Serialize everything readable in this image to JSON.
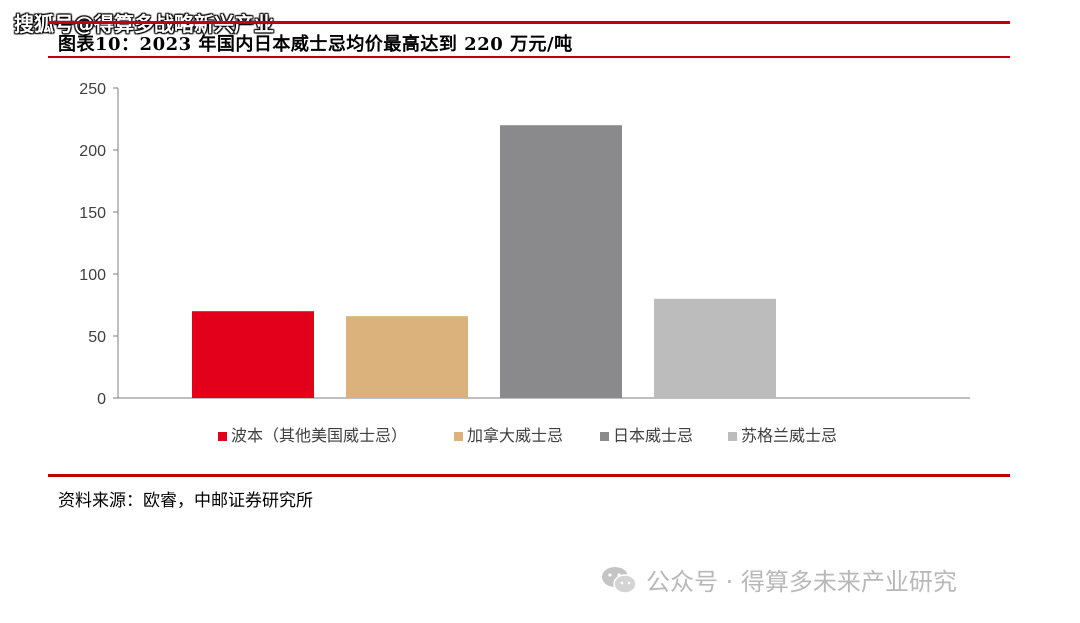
{
  "watermark_top": "搜狐号@得算多战略新兴产业",
  "title": "图表10：2023 年国内日本威士忌均价最高达到 220 万元/吨",
  "source": "资料来源：欧睿，中邮证券研究所",
  "watermark_bottom": "公众号 · 得算多未来产业研究",
  "icons": {
    "watermark": "wechat-icon"
  },
  "chart_data": {
    "type": "bar",
    "title": "图表10：2023 年国内日本威士忌均价最高达到 220 万元/吨",
    "xlabel": "",
    "ylabel": "",
    "categories": [
      "波本（其他美国威士忌）",
      "加拿大威士忌",
      "日本威士忌",
      "苏格兰威士忌"
    ],
    "values": [
      70,
      66,
      220,
      80
    ],
    "colors": [
      "#e3001b",
      "#dcb27c",
      "#8a8a8c",
      "#bcbcbc"
    ],
    "ylim": [
      0,
      250
    ],
    "yticks": [
      0,
      50,
      100,
      150,
      200,
      250
    ],
    "grid": false,
    "legend": "bottom"
  }
}
